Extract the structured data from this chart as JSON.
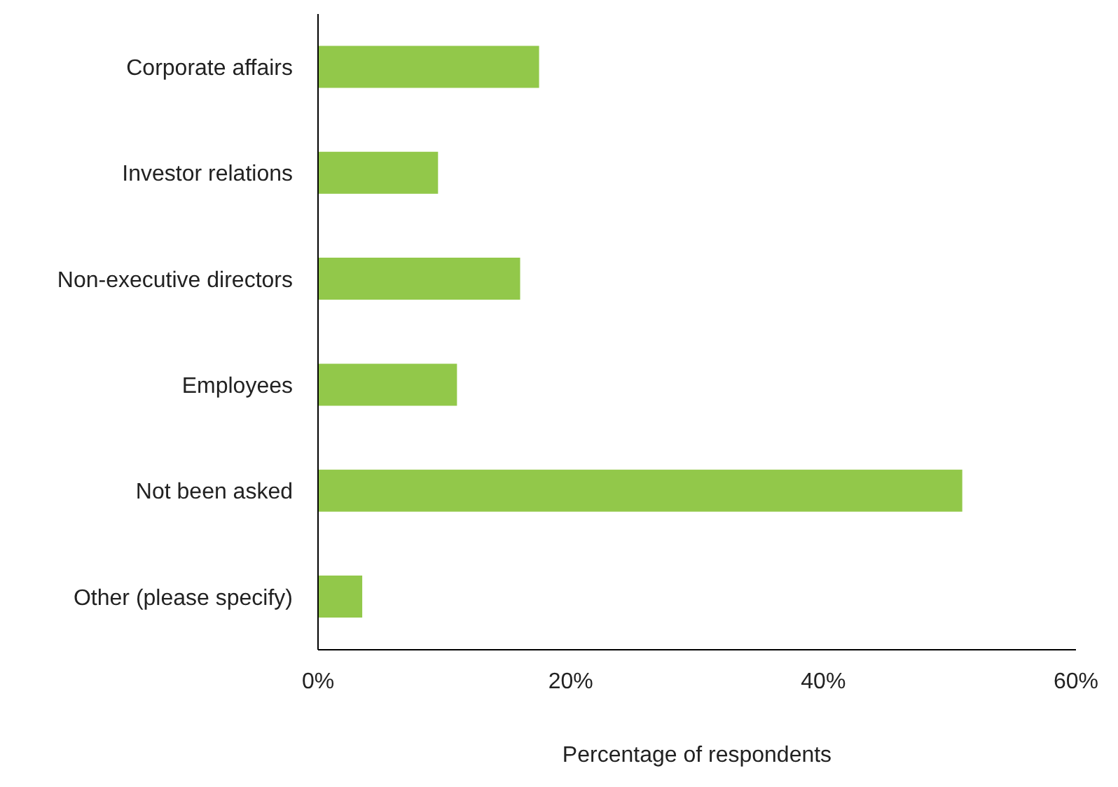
{
  "chart_data": {
    "type": "bar",
    "orientation": "horizontal",
    "xlabel": "Percentage of respondents",
    "categories": [
      "Corporate affairs",
      "Investor relations",
      "Non-executive directors",
      "Employees",
      "Not been asked",
      "Other (please specify)"
    ],
    "values": [
      17.5,
      9.5,
      16,
      11,
      51,
      3.5
    ],
    "color": "#92c84a",
    "xlim": [
      0,
      60
    ],
    "xticks": [
      {
        "value": 0,
        "label": "0%"
      },
      {
        "value": 20,
        "label": "20%"
      },
      {
        "value": 40,
        "label": "40%"
      },
      {
        "value": 60,
        "label": "60%"
      }
    ],
    "grid": false,
    "legend": false
  }
}
